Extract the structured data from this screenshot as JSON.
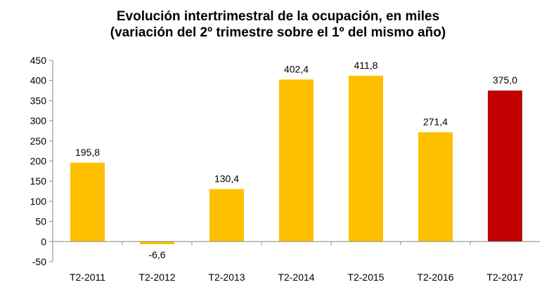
{
  "chart_data": {
    "type": "bar",
    "title": "Evolución intertrimestral de la ocupación, en miles",
    "subtitle": "(variación del 2º trimestre sobre el 1º del mismo año)",
    "xlabel": "",
    "ylabel": "",
    "categories": [
      "T2-2011",
      "T2-2012",
      "T2-2013",
      "T2-2014",
      "T2-2015",
      "T2-2016",
      "T2-2017"
    ],
    "values": [
      195.8,
      -6.6,
      130.4,
      402.4,
      411.8,
      271.4,
      375.0
    ],
    "value_labels": [
      "195,8",
      "-6,6",
      "130,4",
      "402,4",
      "411,8",
      "271,4",
      "375,0"
    ],
    "ylim": [
      -50,
      450
    ],
    "yticks": [
      -50,
      0,
      50,
      100,
      150,
      200,
      250,
      300,
      350,
      400,
      450
    ],
    "grid": false,
    "legend": "none",
    "colors": {
      "default_bar": "#FFC000",
      "highlight_bar": "#C00000",
      "axis": "#868686"
    },
    "highlight_index": 6
  }
}
